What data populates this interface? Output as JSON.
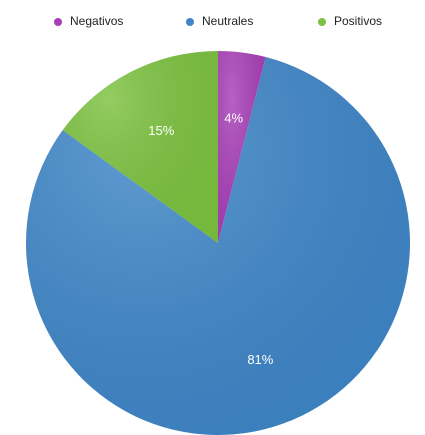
{
  "chart_data": {
    "type": "pie",
    "categories": [
      "Negativos",
      "Neutrales",
      "Positivos"
    ],
    "values": [
      4,
      81,
      15
    ],
    "value_labels": [
      "4%",
      "81%",
      "15%"
    ],
    "colors": [
      "#a83fb8",
      "#3e86c8",
      "#7cc23f"
    ]
  }
}
